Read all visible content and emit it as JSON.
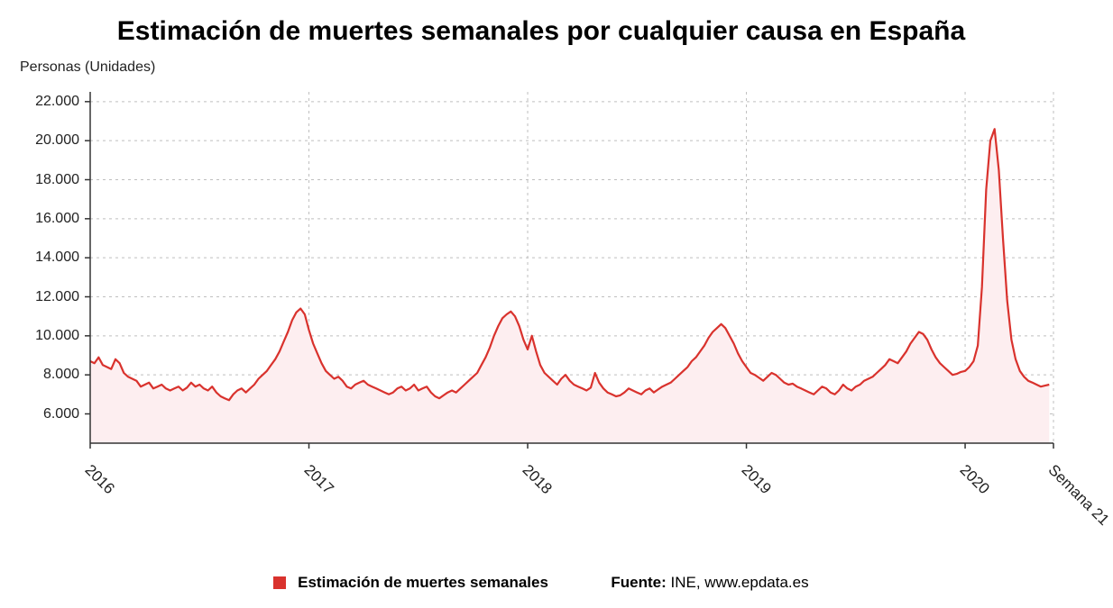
{
  "title": "Estimación de muertes semanales por cualquier causa en España",
  "y_axis_label": "Personas (Unidades)",
  "legend": {
    "swatch_color": "#d9322d",
    "series_label": "Estimación de muertes semanales",
    "source_prefix": "Fuente: ",
    "source_text": "INE, www.epdata.es"
  },
  "chart": {
    "type": "area",
    "background_color": "#ffffff",
    "area_fill": "#fdeef0",
    "line_color": "#d9322d",
    "line_width": 2.2,
    "grid_color": "#bfbfbf",
    "grid_dash": "3,4",
    "axis_color": "#333333",
    "tick_color": "#333333",
    "label_fontsize": 16,
    "title_fontsize": 30,
    "x_range": [
      0,
      229
    ],
    "y_range": [
      4500,
      22500
    ],
    "y_ticks": [
      6000,
      8000,
      10000,
      12000,
      14000,
      16000,
      18000,
      20000,
      22000
    ],
    "y_tick_labels": [
      "6.000",
      "8.000",
      "10.000",
      "12.000",
      "14.000",
      "16.000",
      "18.000",
      "20.000",
      "22.000"
    ],
    "x_ticks": [
      {
        "x": 0,
        "label": "2016"
      },
      {
        "x": 52,
        "label": "2017"
      },
      {
        "x": 104,
        "label": "2018"
      },
      {
        "x": 156,
        "label": "2019"
      },
      {
        "x": 208,
        "label": "2020"
      },
      {
        "x": 229,
        "label": "Semana 21"
      }
    ],
    "series": [
      8700,
      8600,
      8900,
      8500,
      8400,
      8300,
      8800,
      8600,
      8100,
      7900,
      7800,
      7700,
      7400,
      7500,
      7600,
      7300,
      7400,
      7500,
      7300,
      7200,
      7300,
      7400,
      7200,
      7350,
      7600,
      7400,
      7500,
      7300,
      7200,
      7400,
      7100,
      6900,
      6800,
      6700,
      7000,
      7200,
      7300,
      7100,
      7300,
      7500,
      7800,
      8000,
      8200,
      8500,
      8800,
      9200,
      9700,
      10200,
      10800,
      11200,
      11400,
      11100,
      10300,
      9600,
      9100,
      8600,
      8200,
      8000,
      7800,
      7900,
      7700,
      7400,
      7300,
      7500,
      7600,
      7700,
      7500,
      7400,
      7300,
      7200,
      7100,
      7000,
      7100,
      7300,
      7400,
      7200,
      7300,
      7500,
      7200,
      7300,
      7400,
      7100,
      6900,
      6800,
      6950,
      7100,
      7200,
      7100,
      7300,
      7500,
      7700,
      7900,
      8100,
      8500,
      8900,
      9400,
      10000,
      10500,
      10900,
      11100,
      11250,
      11000,
      10500,
      9800,
      9300,
      10000,
      9200,
      8500,
      8100,
      7900,
      7700,
      7500,
      7800,
      8000,
      7700,
      7500,
      7400,
      7300,
      7200,
      7350,
      8100,
      7600,
      7300,
      7100,
      7000,
      6900,
      6950,
      7100,
      7300,
      7200,
      7100,
      7000,
      7200,
      7300,
      7100,
      7250,
      7400,
      7500,
      7600,
      7800,
      8000,
      8200,
      8400,
      8700,
      8900,
      9200,
      9500,
      9900,
      10200,
      10400,
      10600,
      10400,
      10000,
      9600,
      9100,
      8700,
      8400,
      8100,
      8000,
      7850,
      7700,
      7900,
      8100,
      8000,
      7800,
      7600,
      7500,
      7550,
      7400,
      7300,
      7200,
      7100,
      7000,
      7200,
      7400,
      7300,
      7100,
      7000,
      7200,
      7500,
      7300,
      7200,
      7400,
      7500,
      7700,
      7800,
      7900,
      8100,
      8300,
      8500,
      8800,
      8700,
      8600,
      8900,
      9200,
      9600,
      9900,
      10200,
      10100,
      9800,
      9300,
      8900,
      8600,
      8400,
      8200,
      8000,
      8050,
      8150,
      8200,
      8400,
      8700,
      9500,
      12500,
      17500,
      20000,
      20600,
      18500,
      15000,
      11800,
      9800,
      8800,
      8200,
      7900,
      7700,
      7600,
      7500,
      7400,
      7450,
      7500
    ]
  }
}
